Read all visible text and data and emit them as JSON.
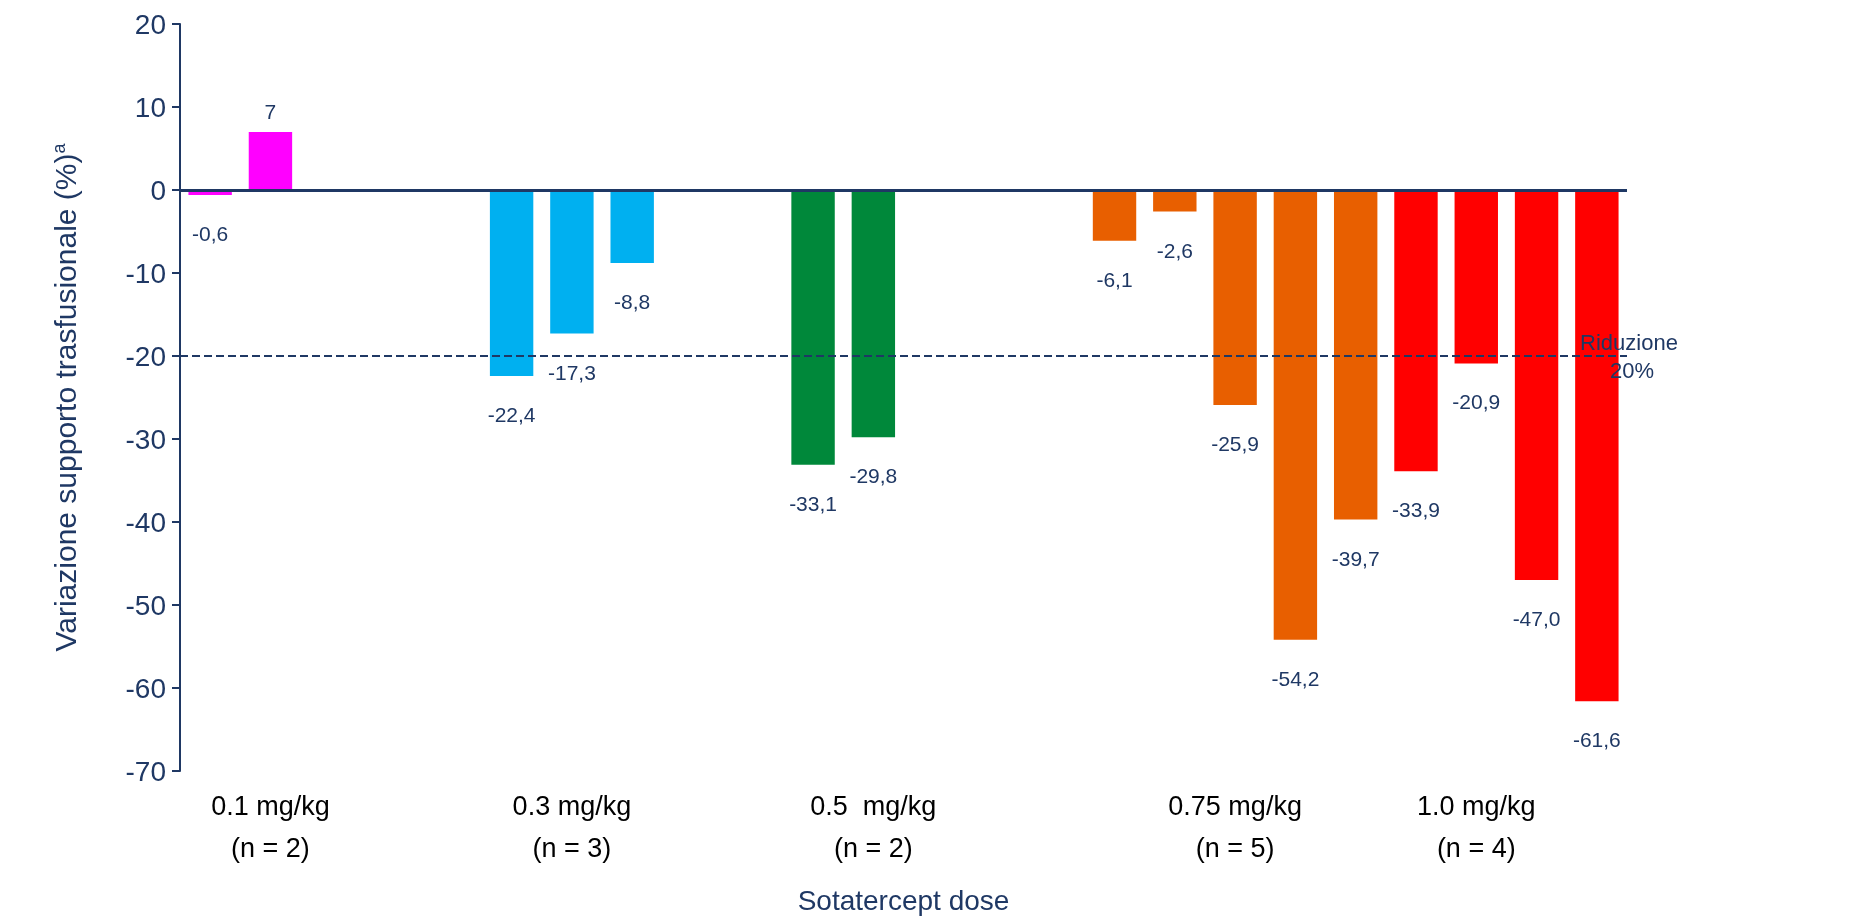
{
  "chart_data": {
    "type": "bar",
    "xlabel": "Sotatercept dose",
    "ylabel": "Variazione supporto trasfusionale (%)$^{a}$",
    "categories": [
      null,
      "0.1 mg/kg\n(n = 2)",
      null,
      null,
      null,
      null,
      "0.3 mg/kg\n(n = 3)",
      null,
      null,
      null,
      null,
      "0.5  mg/kg\n(n = 2)",
      null,
      null,
      null,
      null,
      null,
      "0.75 mg/kg\n(n = 5)",
      null,
      null,
      null,
      "1.0 mg/kg\n(n = 4)",
      null,
      null
    ],
    "values": [
      -0.6,
      7,
      null,
      null,
      null,
      -22.4,
      -17.3,
      -8.8,
      null,
      null,
      -33.1,
      -29.8,
      null,
      null,
      null,
      -6.1,
      -2.6,
      -25.9,
      -54.2,
      -39.7,
      -33.9,
      -20.9,
      -47.0,
      -61.6
    ],
    "value_labels": [
      "-0,6",
      "7",
      null,
      null,
      null,
      "-22,4",
      "-17,3",
      "-8,8",
      null,
      null,
      "-33,1",
      "-29,8",
      null,
      null,
      null,
      "-6,1",
      "-2,6",
      "-25,9",
      "-54,2",
      "-39,7",
      "-33,9",
      "-20,9",
      "-47,0",
      "-61,6"
    ],
    "colors": [
      "#ff00ff",
      "#ff00ff",
      null,
      null,
      null,
      "#00b0f0",
      "#00b0f0",
      "#00b0f0",
      null,
      null,
      "#00883a",
      "#00883a",
      null,
      null,
      null,
      "#e85f00",
      "#e85f00",
      "#e85f00",
      "#e85f00",
      "#e85f00",
      "#ff0000",
      "#ff0000",
      "#ff0000",
      "#ff0000"
    ],
    "ylim": [
      -70,
      20
    ],
    "yticks": [
      -70,
      -60,
      -50,
      -40,
      -30,
      -20,
      -10,
      0,
      10,
      20
    ],
    "ref_lines": [
      {
        "axis": "y",
        "value": 0,
        "label": null,
        "color": "#1f3864",
        "line_style": "solid"
      },
      {
        "axis": "y",
        "value": -20,
        "label": "Riduzione 20%",
        "color": "#1f3864",
        "line_style": "dashed"
      }
    ],
    "grid": false
  }
}
